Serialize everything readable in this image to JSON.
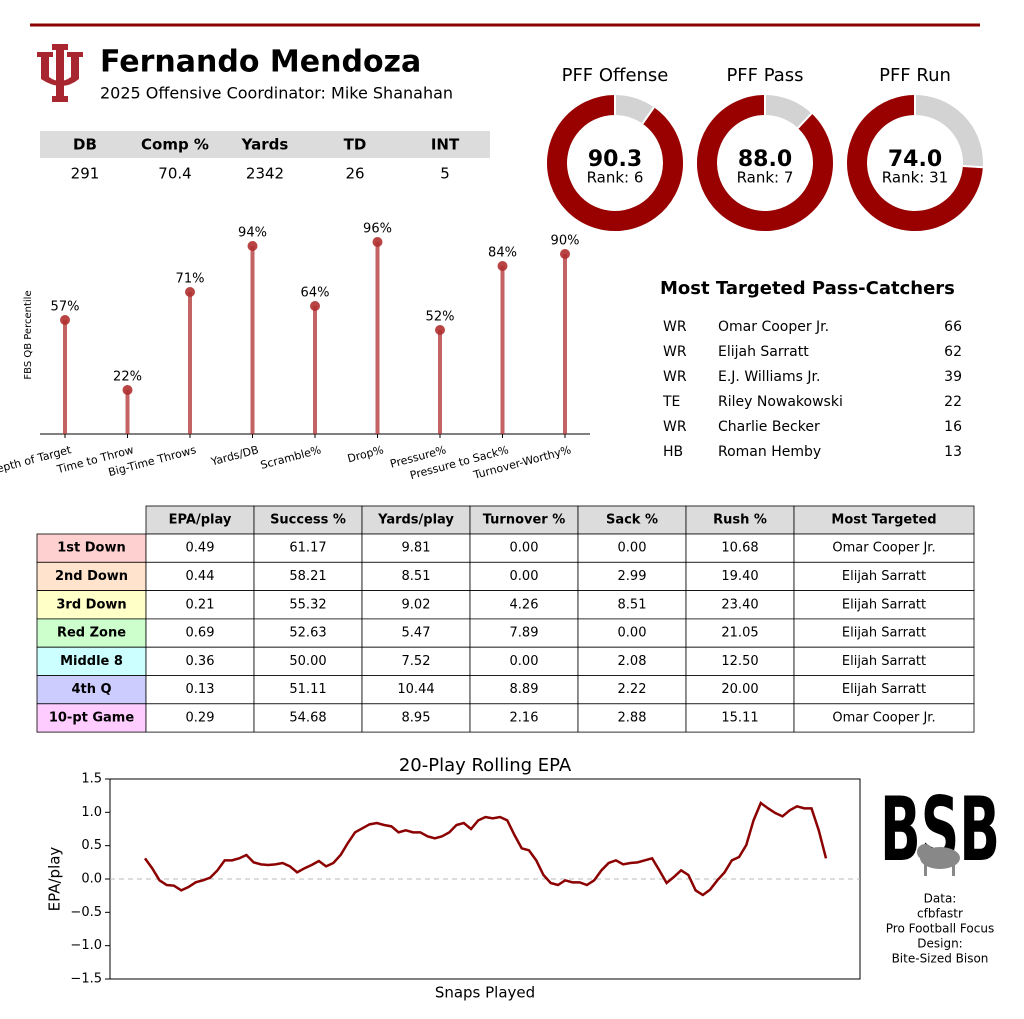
{
  "header": {
    "title": "Fernando Mendoza",
    "subtitle": "2025 Offensive Coordinator: Mike Shanahan"
  },
  "stats_table": {
    "columns": [
      "DB",
      "Comp %",
      "Yards",
      "TD",
      "INT"
    ],
    "rows": [
      [
        "291",
        "70.4",
        "2342",
        "26",
        "5"
      ]
    ]
  },
  "pass_catchers": {
    "title": "Most Targeted Pass-Catchers",
    "rows": [
      [
        "WR",
        "Omar Cooper Jr.",
        "66"
      ],
      [
        "WR",
        "Elijah Sarratt",
        "62"
      ],
      [
        "WR",
        "E.J. Williams Jr.",
        "39"
      ],
      [
        "TE",
        "Riley Nowakowski",
        "22"
      ],
      [
        "WR",
        "Charlie Becker",
        "16"
      ],
      [
        "HB",
        "Roman Hemby",
        "13"
      ]
    ]
  },
  "situational_table": {
    "columns": [
      "EPA/play",
      "Success %",
      "Yards/play",
      "Turnover %",
      "Sack %",
      "Rush %",
      "Most Targeted"
    ],
    "rows": [
      {
        "label": "1st Down",
        "color": "#ffd0d0",
        "cells": [
          "0.49",
          "61.17",
          "9.81",
          "0.00",
          "0.00",
          "10.68",
          "Omar Cooper Jr."
        ]
      },
      {
        "label": "2nd Down",
        "color": "#ffe3cc",
        "cells": [
          "0.44",
          "58.21",
          "8.51",
          "0.00",
          "2.99",
          "19.40",
          "Elijah Sarratt"
        ]
      },
      {
        "label": "3rd Down",
        "color": "#ffffc8",
        "cells": [
          "0.21",
          "55.32",
          "9.02",
          "4.26",
          "8.51",
          "23.40",
          "Elijah Sarratt"
        ]
      },
      {
        "label": "Red Zone",
        "color": "#ccffcc",
        "cells": [
          "0.69",
          "52.63",
          "5.47",
          "7.89",
          "0.00",
          "21.05",
          "Elijah Sarratt"
        ]
      },
      {
        "label": "Middle 8",
        "color": "#ccffff",
        "cells": [
          "0.36",
          "50.00",
          "7.52",
          "0.00",
          "2.08",
          "12.50",
          "Elijah Sarratt"
        ]
      },
      {
        "label": "4th Q",
        "color": "#ccccff",
        "cells": [
          "0.13",
          "51.11",
          "10.44",
          "8.89",
          "2.22",
          "20.00",
          "Elijah Sarratt"
        ]
      },
      {
        "label": "10-pt Game",
        "color": "#ffccff",
        "cells": [
          "0.29",
          "54.68",
          "8.95",
          "2.16",
          "2.88",
          "15.11",
          "Omar Cooper Jr."
        ]
      }
    ]
  },
  "logo": {
    "text": "BSB",
    "color": "#e0868f"
  },
  "credits": [
    "Data:",
    "cfbfastr",
    "Pro Football Focus",
    "Design:",
    "Bite-Sized Bison"
  ],
  "chart_data": [
    {
      "type": "donut",
      "title": "PFF Offense",
      "value": 90.3,
      "label": "Rank: 6",
      "ylim": [
        0,
        100
      ],
      "color": "#990000",
      "rest_color": "#d3d3d3"
    },
    {
      "type": "donut",
      "title": "PFF Pass",
      "value": 88,
      "value_label": "88.0",
      "label": "Rank: 7",
      "ylim": [
        0,
        100
      ],
      "color": "#990000",
      "rest_color": "#d3d3d3"
    },
    {
      "type": "donut",
      "title": "PFF Run",
      "value": 74,
      "value_label": "74.0",
      "label": "Rank: 31",
      "ylim": [
        0,
        100
      ],
      "color": "#990000",
      "rest_color": "#d3d3d3"
    },
    {
      "type": "lollipop",
      "ylabel": "FBS QB Percentile",
      "categories": [
        "Depth of Target",
        "Time to Throw",
        "Big-Time Throws",
        "Yards/DB",
        "Scramble%",
        "Drop%",
        "Pressure%",
        "Pressure to Sack%",
        "Turnover-Worthy%"
      ],
      "values": [
        57,
        22,
        71,
        94,
        64,
        96,
        52,
        84,
        90
      ],
      "value_labels": [
        "57%",
        "22%",
        "71%",
        "94%",
        "64%",
        "96%",
        "52%",
        "84%",
        "90%"
      ],
      "ylim": [
        0,
        100
      ],
      "color": "#b03030"
    },
    {
      "type": "line",
      "title": "20-Play Rolling EPA",
      "xlabel": "Snaps Played",
      "ylabel": "EPA/play",
      "ylim": [
        -1.5,
        1.5
      ],
      "yticks": [
        {
          "value": -1.5,
          "label": "−1.5"
        },
        {
          "value": -1,
          "label": "−1.0"
        },
        {
          "value": -0.5,
          "label": "−0.5"
        },
        {
          "value": 0,
          "label": "0.0"
        },
        0.5,
        {
          "value": 1,
          "label": "1.0"
        },
        1.5
      ],
      "zero_line": true,
      "color": "#8b0000",
      "values": [
        0.31,
        0.16,
        -0.02,
        -0.09,
        -0.1,
        -0.17,
        -0.12,
        -0.05,
        -0.02,
        0.02,
        0.13,
        0.28,
        0.28,
        0.31,
        0.36,
        0.25,
        0.22,
        0.21,
        0.22,
        0.24,
        0.19,
        0.1,
        0.16,
        0.21,
        0.27,
        0.19,
        0.24,
        0.36,
        0.54,
        0.7,
        0.76,
        0.82,
        0.84,
        0.81,
        0.79,
        0.7,
        0.73,
        0.7,
        0.7,
        0.64,
        0.61,
        0.64,
        0.7,
        0.81,
        0.84,
        0.75,
        0.88,
        0.93,
        0.91,
        0.93,
        0.88,
        0.66,
        0.46,
        0.43,
        0.28,
        0.06,
        -0.06,
        -0.09,
        -0.02,
        -0.05,
        -0.05,
        -0.09,
        -0.02,
        0.13,
        0.24,
        0.28,
        0.22,
        0.24,
        0.25,
        0.28,
        0.31,
        0.13,
        -0.06,
        0.03,
        0.13,
        0.06,
        -0.17,
        -0.24,
        -0.16,
        -0.02,
        0.1,
        0.28,
        0.33,
        0.51,
        0.88,
        1.14,
        1.06,
        0.99,
        0.94,
        1.03,
        1.09,
        1.06,
        1.06,
        0.73,
        0.31
      ]
    }
  ]
}
